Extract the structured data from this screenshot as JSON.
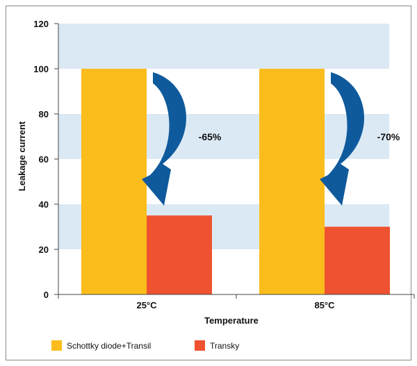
{
  "chart_data": {
    "type": "bar",
    "xlabel": "Temperature",
    "ylabel": "Leakage current",
    "categories": [
      "25°C",
      "85°C"
    ],
    "series": [
      {
        "name": "Schottky diode+Transil",
        "color": "#fbbd1c",
        "values": [
          100,
          100
        ]
      },
      {
        "name": "Transky",
        "color": "#ee5230",
        "values": [
          35,
          30
        ]
      }
    ],
    "ylim": [
      0,
      120
    ],
    "yticks": [
      0,
      20,
      40,
      60,
      80,
      100,
      120
    ],
    "annotations": [
      "-65%",
      "-70%"
    ],
    "grid": "alternating horizontal bands",
    "band_color": "#dbe9f5",
    "arrow_color": "#0f5a9c",
    "legend_position": "bottom-left"
  }
}
